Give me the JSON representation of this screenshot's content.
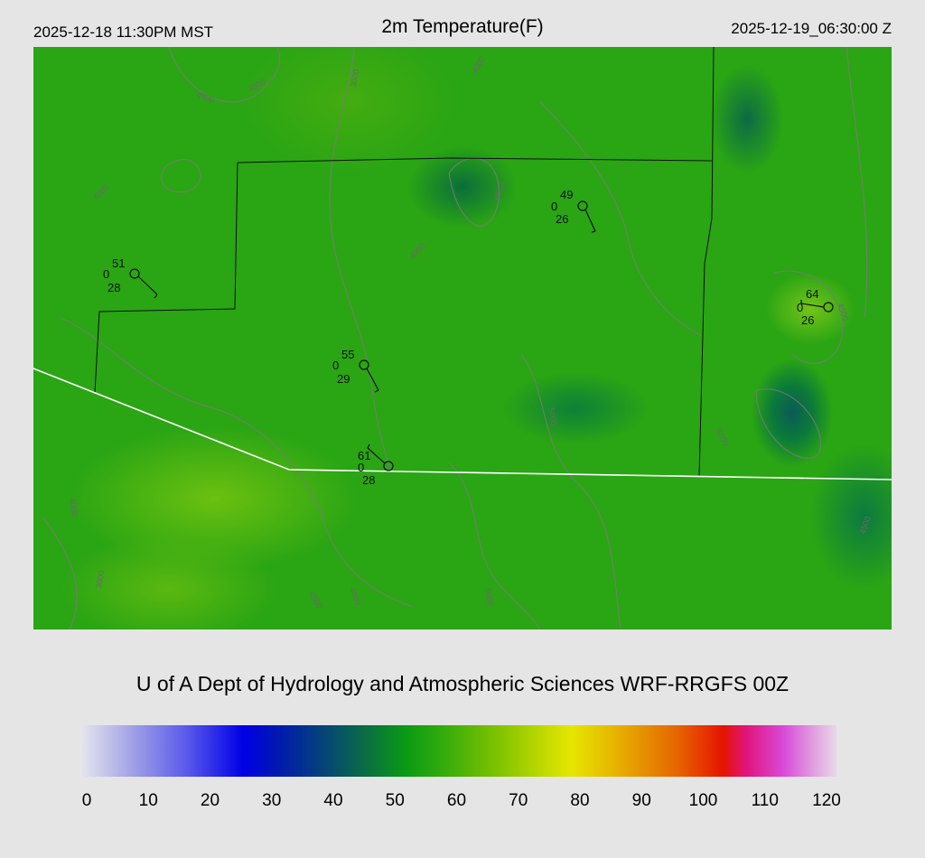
{
  "header": {
    "local_time": "2025-12-18 11:30PM MST",
    "title": "2m Temperature(F)",
    "utc_time": "2025-12-19_06:30:00 Z"
  },
  "map": {
    "contour_labels": [
      "3000",
      "4000",
      "4500",
      "4000",
      "4000",
      "4000",
      "4500",
      "5000",
      "4500",
      "5000",
      "4000",
      "3000",
      "4500",
      "4000",
      "5000",
      "4500"
    ],
    "stations": [
      {
        "temp": "51",
        "wx": "0",
        "dew": "28"
      },
      {
        "temp": "49",
        "wx": "0",
        "dew": "26"
      },
      {
        "temp": "64",
        "wx": "0",
        "dew": "26"
      },
      {
        "temp": "55",
        "wx": "0",
        "dew": "29"
      },
      {
        "temp": "61",
        "wx": "0",
        "dew": "28"
      }
    ]
  },
  "footer": {
    "subtitle": "U of A Dept of Hydrology and Atmospheric Sciences WRF-RRGFS 00Z",
    "colorbar_ticks": [
      "0",
      "10",
      "20",
      "30",
      "40",
      "50",
      "60",
      "70",
      "80",
      "90",
      "100",
      "110",
      "120"
    ]
  }
}
